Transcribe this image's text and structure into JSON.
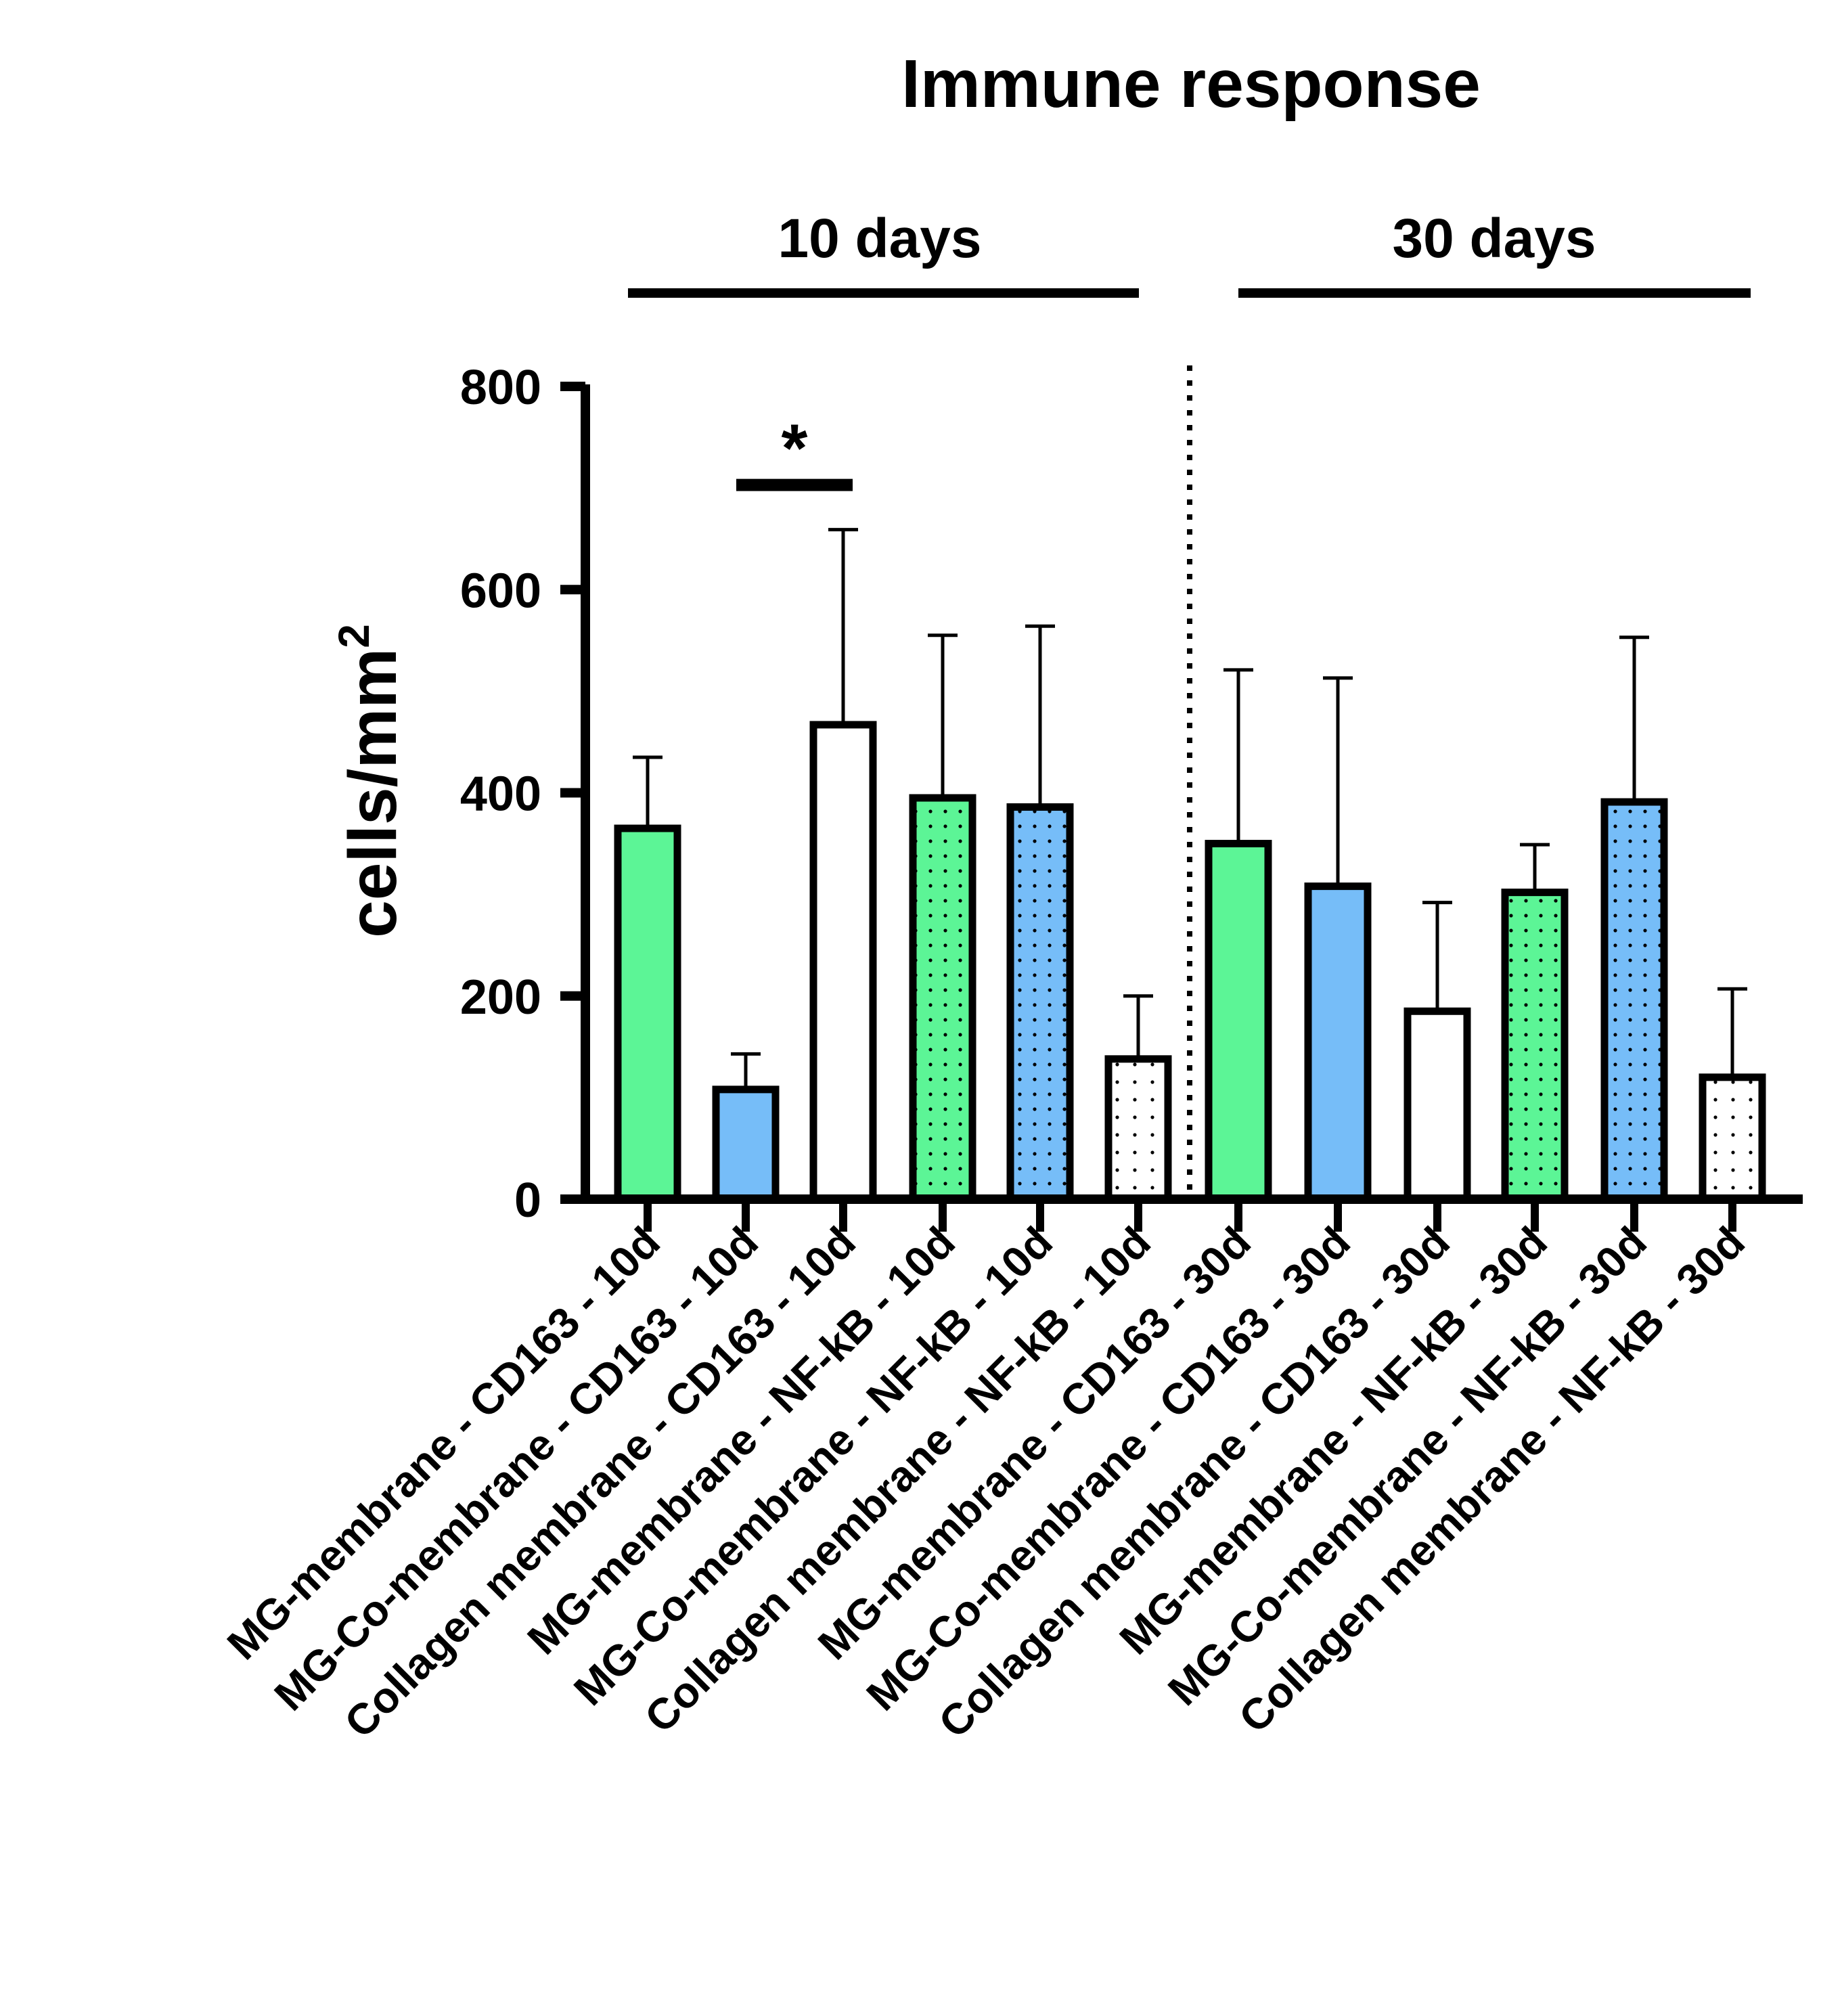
{
  "chart_data": {
    "type": "bar",
    "title": "Immune response",
    "ylabel": "cells/mm",
    "ylabel_superscript": "2",
    "ylim": [
      0,
      800
    ],
    "yticks": [
      0,
      200,
      400,
      600,
      800
    ],
    "groups": [
      {
        "label": "10 days"
      },
      {
        "label": "30 days"
      }
    ],
    "categories": [
      "MG-membrane - CD163 - 10d",
      "MG-Co-membrane - CD163 - 10d",
      "Collagen membrane - CD163 - 10d",
      "MG-membrane - NF-kB - 10d",
      "MG-Co-membrane - NF-kB - 10d",
      "Collagen membrane - NF-kB - 10d",
      "MG-membrane - CD163 - 30d",
      "MG-Co-membrane - CD163 - 30d",
      "Collagen membrane - CD163 - 30d",
      "MG-membrane - NF-kB - 30d",
      "MG-Co-membrane - NF-kB - 30d",
      "Collagen membrane - NF-kB - 30d"
    ],
    "values": [
      365,
      108,
      467,
      395,
      386,
      138,
      350,
      308,
      185,
      302,
      391,
      120
    ],
    "errors": [
      70,
      35,
      192,
      160,
      178,
      62,
      171,
      205,
      107,
      47,
      162,
      87
    ],
    "fills": [
      "#5cf596",
      "#76bdf8",
      "#ffffff",
      "#5cf596",
      "#76bdf8",
      "#ffffff",
      "#5cf596",
      "#76bdf8",
      "#ffffff",
      "#5cf596",
      "#76bdf8",
      "#ffffff"
    ],
    "dotted": [
      false,
      false,
      false,
      true,
      true,
      true,
      false,
      false,
      false,
      true,
      true,
      true
    ],
    "significance": {
      "between": [
        1,
        2
      ],
      "label": "*",
      "y": 703
    }
  }
}
